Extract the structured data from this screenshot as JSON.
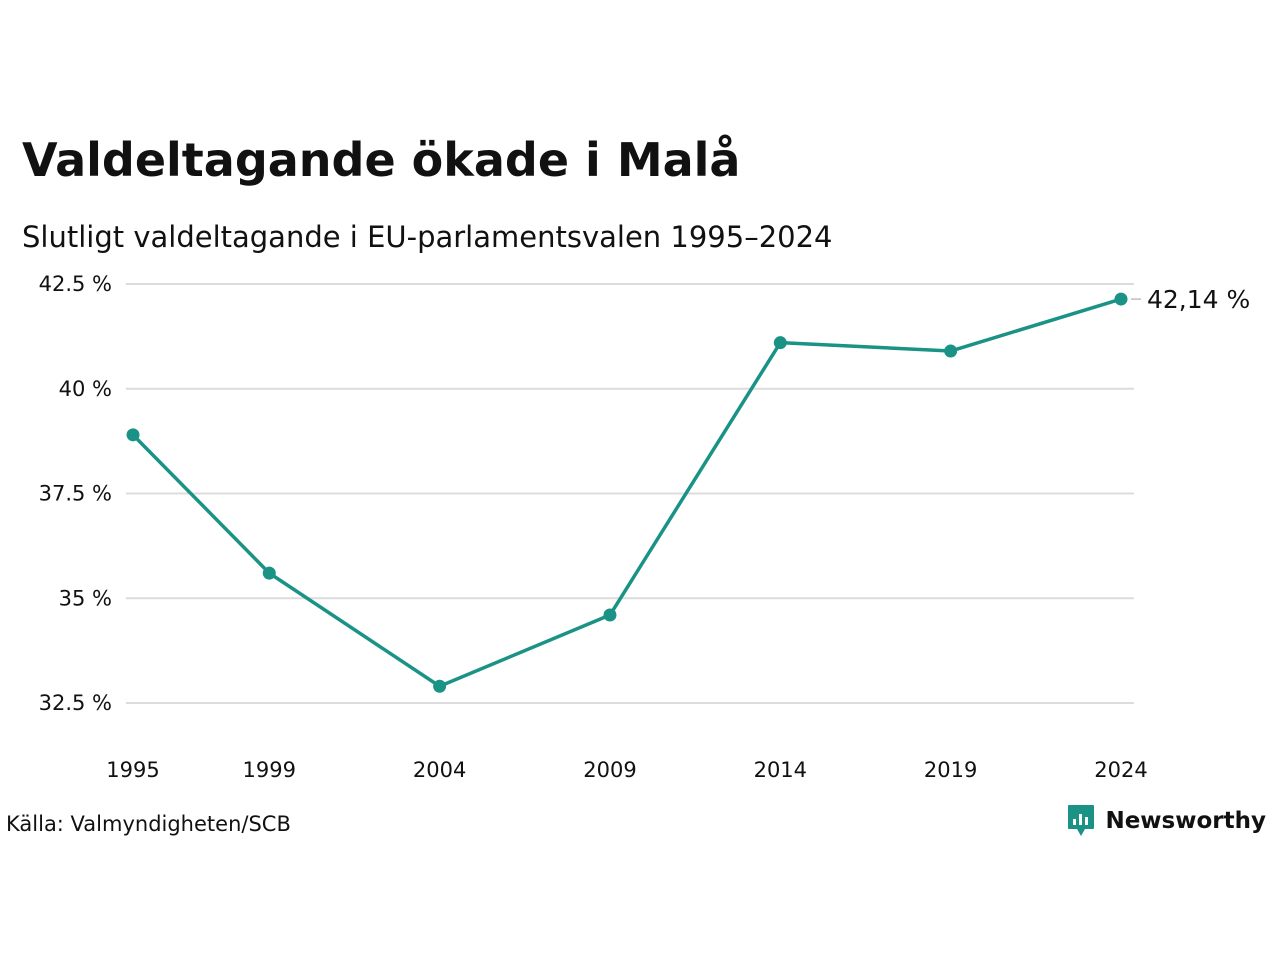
{
  "chart_data": {
    "type": "line",
    "title": "Valdeltagande ökade i Malå",
    "subtitle": "Slutligt valdeltagande i EU-parlamentsvalen 1995–2024",
    "x": [
      1995,
      1999,
      2004,
      2009,
      2014,
      2019,
      2024
    ],
    "x_tick_labels": [
      "1995",
      "1999",
      "2004",
      "2009",
      "2014",
      "2019",
      "2024"
    ],
    "series": [
      {
        "values": [
          38.9,
          35.6,
          32.9,
          34.6,
          41.1,
          40.9,
          42.14
        ],
        "color": "#1a9386"
      }
    ],
    "ylim": [
      32.5,
      42.5
    ],
    "y_ticks": [
      32.5,
      35,
      37.5,
      40,
      42.5
    ],
    "y_tick_labels": [
      "32.5 %",
      "35 %",
      "37.5 %",
      "40 %",
      "42.5 %"
    ],
    "end_label": "42,14 %",
    "grid": true,
    "colors": {
      "line": "#1a9386",
      "grid": "#dcdcdc",
      "text": "#111111"
    }
  },
  "footer": {
    "source": "Källa: Valmyndigheten/SCB",
    "brand_name": "Newsworthy",
    "brand_color": "#1a9386",
    "brand_icon": "newsworthy-logo-icon"
  }
}
